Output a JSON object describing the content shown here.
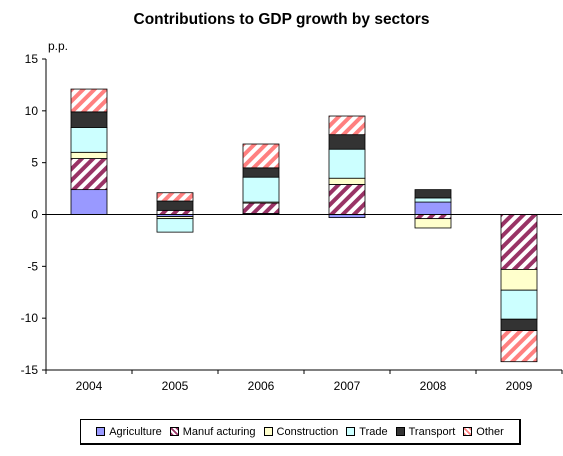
{
  "chart_data": {
    "type": "bar",
    "stacked": true,
    "title": "Contributions to GDP growth by sectors",
    "ylabel": "p.p.",
    "xlabel": "",
    "ylim": [
      -15,
      15
    ],
    "yticks": [
      -15,
      -10,
      -5,
      0,
      5,
      10,
      15
    ],
    "grid": false,
    "legend_position": "bottom",
    "categories": [
      "2004",
      "2005",
      "2006",
      "2007",
      "2008",
      "2009"
    ],
    "series": [
      {
        "name": "Agriculture",
        "color": "#9999ff",
        "pattern": "solid",
        "values": [
          2.4,
          -0.2,
          0.1,
          -0.3,
          1.2,
          0.0
        ]
      },
      {
        "name": "Manuf acturing",
        "color": "#993366",
        "pattern": "hatch",
        "values": [
          3.0,
          0.4,
          1.0,
          2.9,
          -0.4,
          -5.3
        ]
      },
      {
        "name": "Construction",
        "color": "#ffffcc",
        "pattern": "solid",
        "values": [
          0.6,
          -0.2,
          0.1,
          0.6,
          -0.9,
          -2.0
        ]
      },
      {
        "name": "Trade",
        "color": "#ccffff",
        "pattern": "solid",
        "values": [
          2.4,
          -1.3,
          2.4,
          2.8,
          0.4,
          -2.8
        ]
      },
      {
        "name": "Transport",
        "color": "#333333",
        "pattern": "solid",
        "values": [
          1.5,
          0.9,
          0.9,
          1.4,
          0.8,
          -1.1
        ]
      },
      {
        "name": "Other",
        "color": "#ff8080",
        "pattern": "hatch",
        "values": [
          2.2,
          0.8,
          2.3,
          1.8,
          0.0,
          -3.0
        ]
      }
    ]
  }
}
